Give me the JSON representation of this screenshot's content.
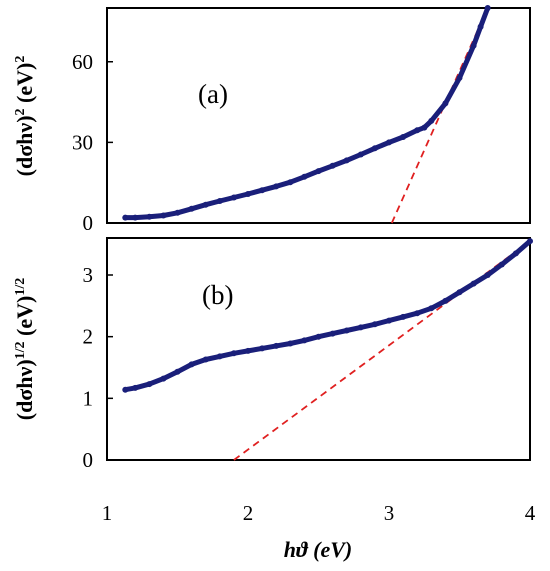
{
  "chart_data": [
    {
      "type": "line",
      "panel_label": "(a)",
      "ylabel": "(dσhν)² (eV)²",
      "ylabel_parts": {
        "base": "(dσhν)",
        "sup1": "2",
        "unit": " (eV)",
        "sup2": "2"
      },
      "xlim": [
        1,
        4
      ],
      "ylim": [
        0,
        80
      ],
      "yticks": [
        0,
        30,
        60
      ],
      "ytick_labels": [
        "0",
        "30",
        "60"
      ],
      "grid": false,
      "series": [
        {
          "color": "#1a1f7a",
          "x": [
            1.13,
            1.2,
            1.3,
            1.4,
            1.5,
            1.6,
            1.7,
            1.8,
            1.9,
            2.0,
            2.1,
            2.2,
            2.3,
            2.4,
            2.5,
            2.6,
            2.7,
            2.8,
            2.9,
            3.0,
            3.1,
            3.2,
            3.25,
            3.3,
            3.4,
            3.5,
            3.6,
            3.65,
            3.7
          ],
          "y": [
            2.0,
            2.0,
            2.3,
            2.8,
            3.8,
            5.3,
            6.8,
            8.2,
            9.5,
            10.8,
            12.2,
            13.6,
            15.2,
            17.2,
            19.3,
            21.3,
            23.3,
            25.5,
            27.8,
            30.0,
            32.0,
            34.5,
            35.5,
            38.0,
            44.5,
            54.0,
            66.0,
            73.0,
            80.0
          ]
        },
        {
          "color": "#e02020",
          "style": "dashed",
          "x": [
            3.02,
            3.7
          ],
          "y": [
            0,
            80
          ]
        }
      ]
    },
    {
      "type": "line",
      "panel_label": "(b)",
      "ylabel": "(dσhν)^1/2 (eV)^1/2",
      "ylabel_parts": {
        "base": "(dσhν)",
        "sup1": "1/2",
        "unit": " (eV)",
        "sup2": "1/2"
      },
      "xlim": [
        1,
        4
      ],
      "ylim": [
        0,
        3.6
      ],
      "yticks": [
        0,
        1,
        2,
        3
      ],
      "ytick_labels": [
        "0",
        "1",
        "2",
        "3"
      ],
      "xticks": [
        1,
        2,
        3,
        4
      ],
      "xtick_labels": [
        "1",
        "2",
        "3",
        "4"
      ],
      "xlabel": "hϑ (eV)",
      "grid": false,
      "series": [
        {
          "color": "#1a1f7a",
          "x": [
            1.13,
            1.2,
            1.3,
            1.4,
            1.5,
            1.6,
            1.7,
            1.8,
            1.9,
            2.0,
            2.1,
            2.2,
            2.3,
            2.4,
            2.5,
            2.6,
            2.7,
            2.8,
            2.9,
            3.0,
            3.1,
            3.2,
            3.3,
            3.4,
            3.5,
            3.6,
            3.7,
            3.8,
            3.9,
            4.0
          ],
          "y": [
            1.14,
            1.17,
            1.23,
            1.32,
            1.43,
            1.55,
            1.63,
            1.68,
            1.73,
            1.77,
            1.81,
            1.85,
            1.89,
            1.94,
            2.0,
            2.05,
            2.1,
            2.15,
            2.2,
            2.26,
            2.32,
            2.38,
            2.46,
            2.58,
            2.72,
            2.86,
            3.0,
            3.17,
            3.35,
            3.55
          ]
        },
        {
          "color": "#e02020",
          "style": "dashed",
          "x": [
            1.9,
            4.0
          ],
          "y": [
            0,
            3.55
          ]
        }
      ]
    }
  ]
}
